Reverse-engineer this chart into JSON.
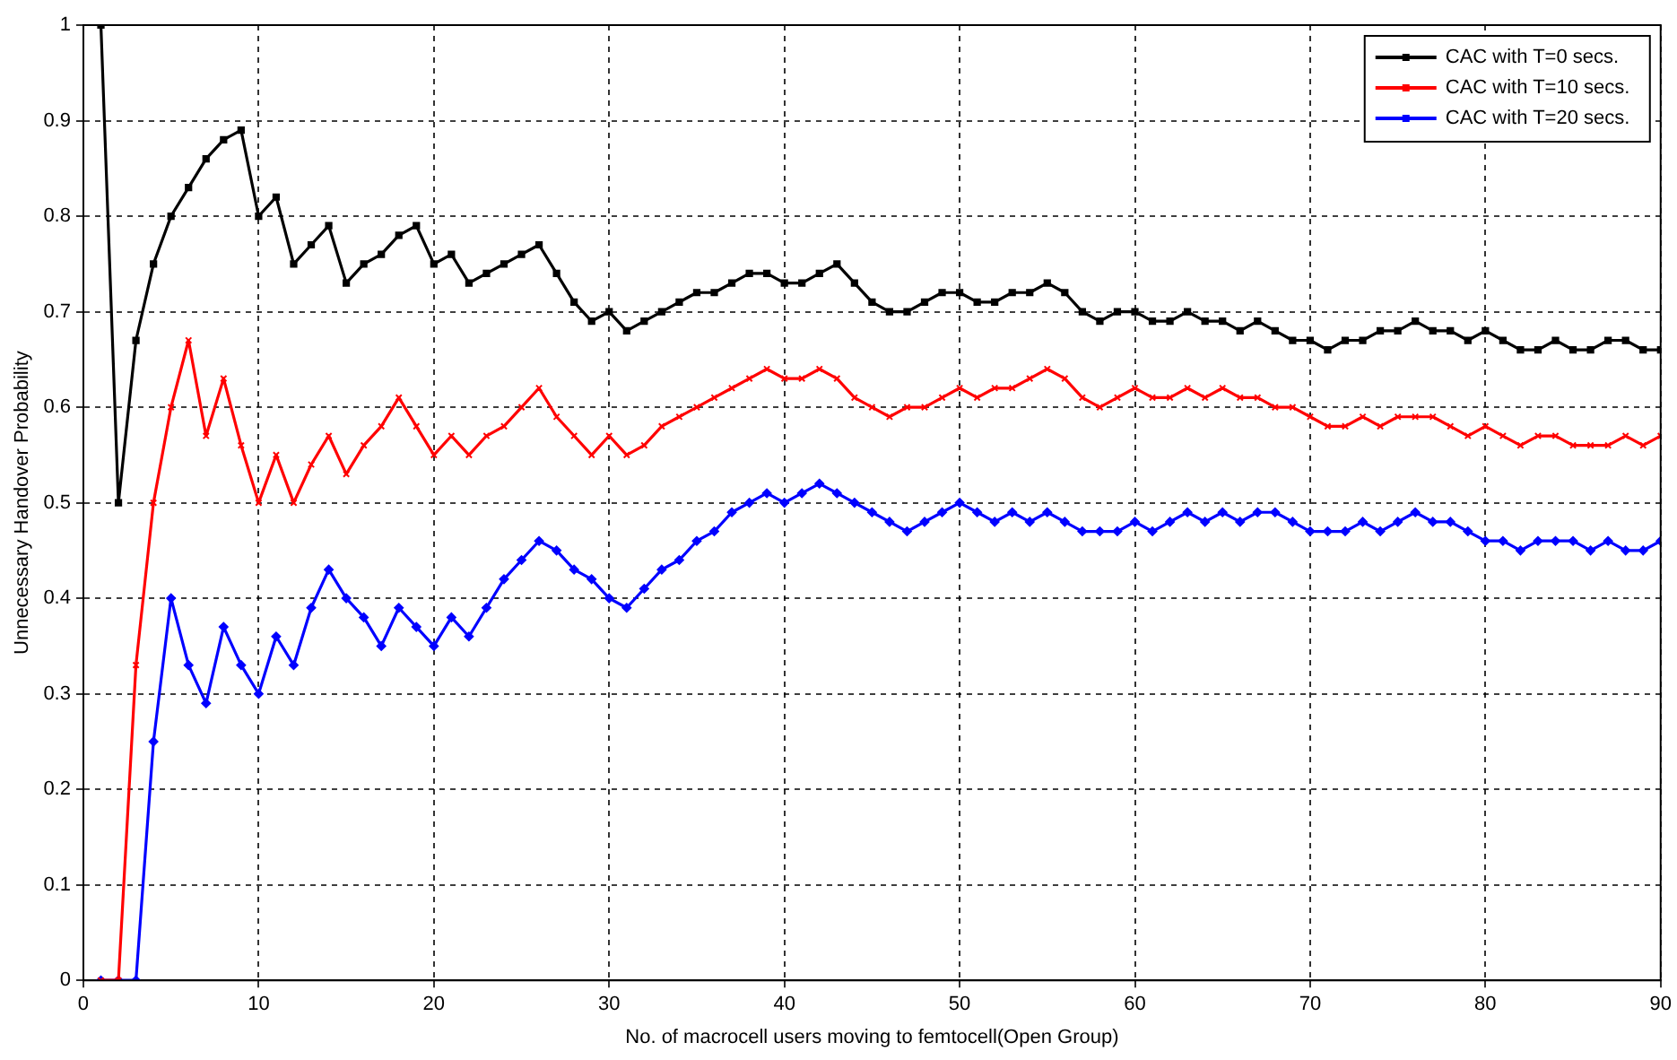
{
  "chart_data": {
    "type": "line",
    "xlabel": "No. of macrocell users moving to femtocell(Open Group)",
    "ylabel": "Unnecessary Handover Probability",
    "x": [
      1,
      2,
      3,
      4,
      5,
      6,
      7,
      8,
      9,
      10,
      11,
      12,
      13,
      14,
      15,
      16,
      17,
      18,
      19,
      20,
      21,
      22,
      23,
      24,
      25,
      26,
      27,
      28,
      29,
      30,
      31,
      32,
      33,
      34,
      35,
      36,
      37,
      38,
      39,
      40,
      41,
      42,
      43,
      44,
      45,
      46,
      47,
      48,
      49,
      50,
      51,
      52,
      53,
      54,
      55,
      56,
      57,
      58,
      59,
      60,
      61,
      62,
      63,
      64,
      65,
      66,
      67,
      68,
      69,
      70,
      71,
      72,
      73,
      74,
      75,
      76,
      77,
      78,
      79,
      80,
      81,
      82,
      83,
      84,
      85,
      86,
      87,
      88,
      89,
      90
    ],
    "series": [
      {
        "name": "CAC with T=0 secs.",
        "color": "#000000",
        "marker": "square",
        "values": [
          1.0,
          0.5,
          0.67,
          0.75,
          0.8,
          0.83,
          0.86,
          0.88,
          0.89,
          0.8,
          0.82,
          0.75,
          0.77,
          0.79,
          0.73,
          0.75,
          0.76,
          0.78,
          0.79,
          0.75,
          0.76,
          0.73,
          0.74,
          0.75,
          0.76,
          0.77,
          0.74,
          0.71,
          0.69,
          0.7,
          0.68,
          0.69,
          0.7,
          0.71,
          0.72,
          0.72,
          0.73,
          0.74,
          0.74,
          0.73,
          0.73,
          0.74,
          0.75,
          0.73,
          0.71,
          0.7,
          0.7,
          0.71,
          0.72,
          0.72,
          0.71,
          0.71,
          0.72,
          0.72,
          0.73,
          0.72,
          0.7,
          0.69,
          0.7,
          0.7,
          0.69,
          0.69,
          0.7,
          0.69,
          0.69,
          0.68,
          0.69,
          0.68,
          0.67,
          0.67,
          0.66,
          0.67,
          0.67,
          0.68,
          0.68,
          0.69,
          0.68,
          0.68,
          0.67,
          0.68,
          0.67,
          0.66,
          0.66,
          0.67,
          0.66,
          0.66,
          0.67,
          0.67,
          0.66,
          0.66
        ]
      },
      {
        "name": "CAC with T=10 secs.",
        "color": "#ff0000",
        "marker": "cross",
        "values": [
          0,
          0,
          0.33,
          0.5,
          0.6,
          0.67,
          0.57,
          0.63,
          0.56,
          0.5,
          0.55,
          0.5,
          0.54,
          0.57,
          0.53,
          0.56,
          0.58,
          0.61,
          0.58,
          0.55,
          0.57,
          0.55,
          0.57,
          0.58,
          0.6,
          0.62,
          0.59,
          0.57,
          0.55,
          0.57,
          0.55,
          0.56,
          0.58,
          0.59,
          0.6,
          0.61,
          0.62,
          0.63,
          0.64,
          0.63,
          0.63,
          0.64,
          0.63,
          0.61,
          0.6,
          0.59,
          0.6,
          0.6,
          0.61,
          0.62,
          0.61,
          0.62,
          0.62,
          0.63,
          0.64,
          0.63,
          0.61,
          0.6,
          0.61,
          0.62,
          0.61,
          0.61,
          0.62,
          0.61,
          0.62,
          0.61,
          0.61,
          0.6,
          0.6,
          0.59,
          0.58,
          0.58,
          0.59,
          0.58,
          0.59,
          0.59,
          0.59,
          0.58,
          0.57,
          0.58,
          0.57,
          0.56,
          0.57,
          0.57,
          0.56,
          0.56,
          0.56,
          0.57,
          0.56,
          0.57
        ]
      },
      {
        "name": "CAC with T=20 secs.",
        "color": "#0000ff",
        "marker": "diamond",
        "values": [
          0,
          0,
          0,
          0.25,
          0.4,
          0.33,
          0.29,
          0.37,
          0.33,
          0.3,
          0.36,
          0.33,
          0.39,
          0.43,
          0.4,
          0.38,
          0.35,
          0.39,
          0.37,
          0.35,
          0.38,
          0.36,
          0.39,
          0.42,
          0.44,
          0.46,
          0.45,
          0.43,
          0.42,
          0.4,
          0.39,
          0.41,
          0.43,
          0.44,
          0.46,
          0.47,
          0.49,
          0.5,
          0.51,
          0.5,
          0.51,
          0.52,
          0.51,
          0.5,
          0.49,
          0.48,
          0.47,
          0.48,
          0.49,
          0.5,
          0.49,
          0.48,
          0.49,
          0.48,
          0.49,
          0.48,
          0.47,
          0.47,
          0.47,
          0.48,
          0.47,
          0.48,
          0.49,
          0.48,
          0.49,
          0.48,
          0.49,
          0.49,
          0.48,
          0.47,
          0.47,
          0.47,
          0.48,
          0.47,
          0.48,
          0.49,
          0.48,
          0.48,
          0.47,
          0.46,
          0.46,
          0.45,
          0.46,
          0.46,
          0.46,
          0.45,
          0.46,
          0.45,
          0.45,
          0.46
        ]
      }
    ],
    "xlim": [
      0,
      90
    ],
    "xticks": [
      0,
      10,
      20,
      30,
      40,
      50,
      60,
      70,
      80,
      90
    ],
    "ylim": [
      0,
      1
    ],
    "yticks": [
      0,
      0.1,
      0.2,
      0.3,
      0.4,
      0.5,
      0.6,
      0.7,
      0.8,
      0.9,
      1
    ],
    "grid": true,
    "line_style": "solid",
    "legend": "top right"
  }
}
